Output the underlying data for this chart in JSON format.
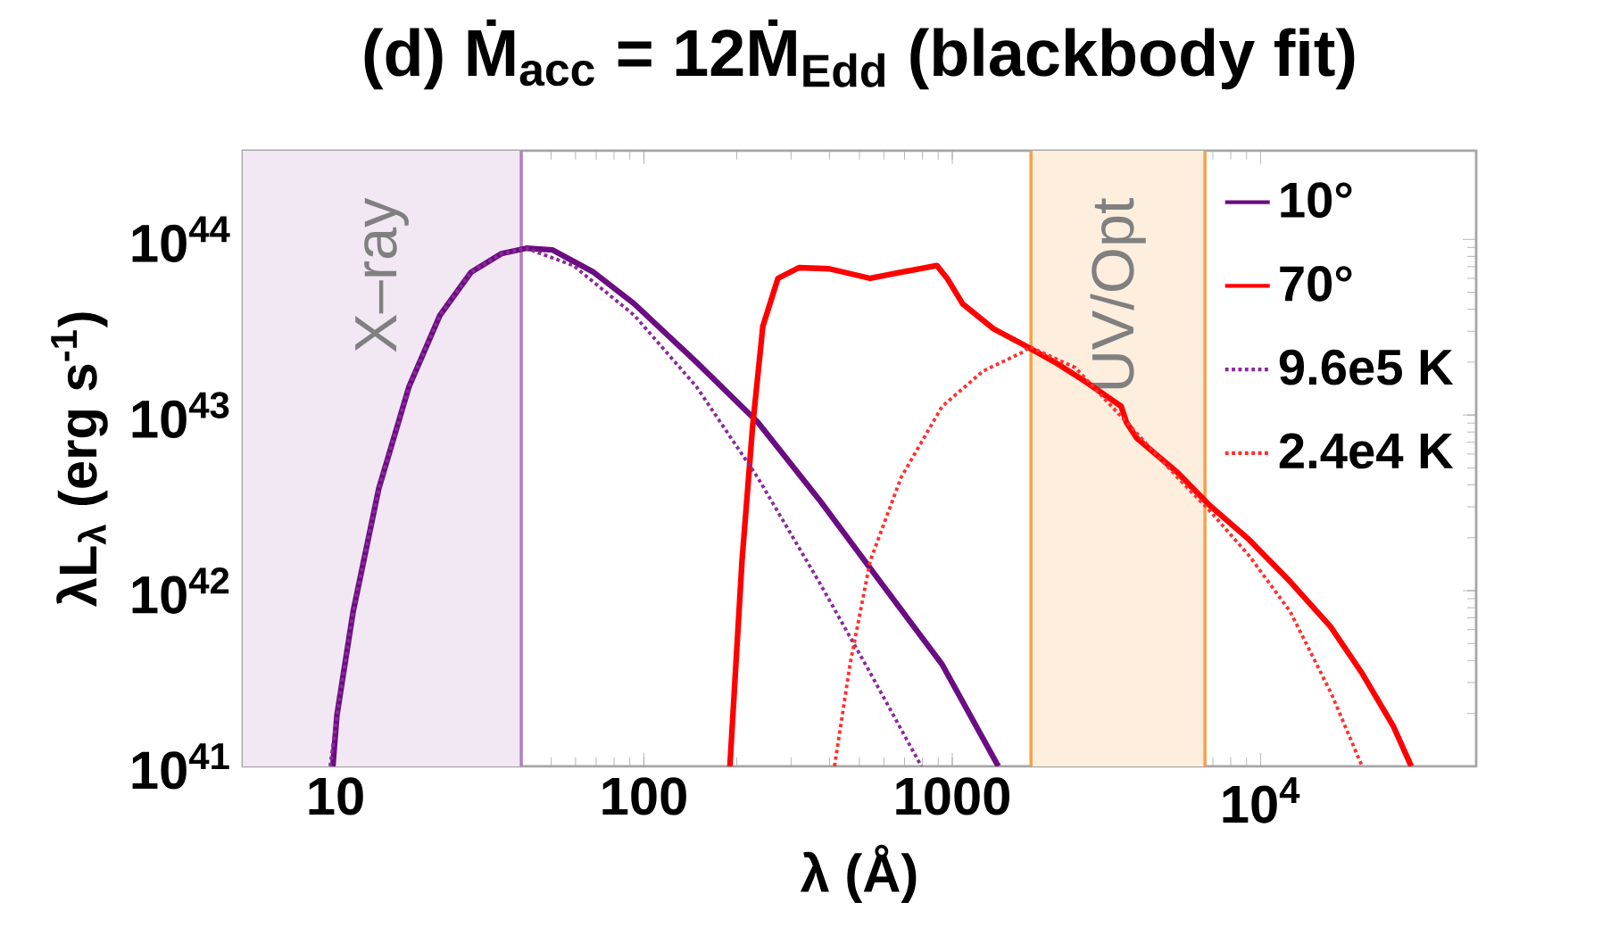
{
  "chart_data": {
    "type": "line",
    "title": "(d) Ṁ$_{acc}$ = 12Ṁ$_{Edd}$ (blackbody fit)",
    "xlabel": "λ (Å)",
    "ylabel": "λL$_{λ}$ (erg s$^{-1}$)",
    "log": "xy",
    "xlim": [
      5,
      50000
    ],
    "ylim": [
      1e+41,
      3.2e+44
    ],
    "xticks": [
      10,
      100,
      1000,
      {
        "value": 10000,
        "label": "10$^{4}$"
      }
    ],
    "yticks": [
      {
        "value": 1e+41,
        "label": "10$^{41}$"
      },
      {
        "value": 1e+42,
        "label": "10$^{42}$"
      },
      {
        "value": 1e+43,
        "label": "10$^{43}$"
      },
      {
        "value": 1e+44,
        "label": "10$^{44}$"
      }
    ],
    "legend": "top right",
    "bands": [
      {
        "axis": "x",
        "from": 5,
        "to": 40,
        "label": "X–ray",
        "color": "#f1e8f4"
      },
      {
        "axis": "x",
        "from": 1800,
        "to": 6600,
        "label": "UV/Opt",
        "color": "#fdeede"
      }
    ],
    "ref_lines": [
      {
        "axis": "x",
        "value": 40,
        "color": "#b27cc2"
      },
      {
        "axis": "x",
        "value": 1800,
        "color": "#f5a347"
      },
      {
        "axis": "x",
        "value": 6600,
        "color": "#f5a347"
      }
    ],
    "series": [
      {
        "name": "10°",
        "color": "#6b0d82",
        "line_style": "solid",
        "x": [
          9.8,
          10.1,
          11.4,
          13.8,
          17.3,
          21.8,
          27.5,
          34.5,
          41.5,
          50.6,
          68.7,
          93,
          148,
          234,
          370,
          585,
          927,
          1410
        ],
        "values": [
          1e+41,
          1.95e+41,
          7.6e+41,
          3.8e+42,
          1.45e+43,
          3.7e+43,
          6.5e+43,
          8.3e+43,
          8.9e+43,
          8.7e+43,
          6.5e+43,
          4.3e+43,
          2e+43,
          9.1e+42,
          3.3e+42,
          1.12e+42,
          3.8e+41,
          1e+41
        ]
      },
      {
        "name": "70°",
        "color": "#ff0000",
        "line_style": "solid",
        "x": [
          190,
          208,
          225,
          243,
          272,
          318,
          399,
          542,
          682,
          891,
          962,
          1080,
          1360,
          1710,
          2150,
          2700,
          3530,
          3670,
          3960,
          5380,
          6780,
          9180,
          12500,
          16900,
          21300,
          26900,
          30800
        ],
        "values": [
          1e+41,
          1.48e+42,
          8.5e+42,
          3.2e+43,
          6e+43,
          6.9e+43,
          6.8e+43,
          6e+43,
          6.5e+43,
          7.1e+43,
          6e+43,
          4.3e+43,
          3.1e+43,
          2.5e+43,
          2e+43,
          1.55e+43,
          1.12e+43,
          9.1e+42,
          7.4e+42,
          4.7e+42,
          3.1e+42,
          1.95e+42,
          1.12e+42,
          6.2e+41,
          3.4e+41,
          1.7e+41,
          1e+41
        ]
      },
      {
        "name": "9.6e5 K",
        "color": "#8b2a9b",
        "line_style": "dotted",
        "x": [
          9.6,
          10.1,
          11.4,
          13.8,
          17.3,
          21.8,
          27.5,
          34.5,
          41.5,
          59,
          93,
          148,
          234,
          370,
          542,
          794
        ],
        "values": [
          1e+41,
          1.95e+41,
          7.6e+41,
          3.8e+42,
          1.45e+43,
          3.7e+43,
          6.5e+43,
          8.3e+43,
          8.9e+43,
          7.1e+43,
          3.7e+43,
          1.45e+43,
          4.4e+42,
          1.12e+42,
          3.4e+41,
          1e+41
        ]
      },
      {
        "name": "2.4e4 K",
        "color": "#ff3030",
        "line_style": "dotted",
        "x": [
          415,
          466,
          542,
          682,
          927,
          1259,
          1710,
          1778,
          2506,
          3673,
          5383,
          6776,
          9183,
          12470,
          16940,
          21330
        ],
        "values": [
          1e+41,
          3.8e+41,
          1.48e+42,
          4.4e+42,
          1.12e+43,
          1.78e+43,
          2.3e+43,
          2.45e+43,
          1.86e+43,
          9.1e+42,
          4.4e+42,
          2.9e+42,
          1.58e+42,
          7.6e+41,
          2.6e+41,
          1e+41
        ]
      }
    ]
  }
}
